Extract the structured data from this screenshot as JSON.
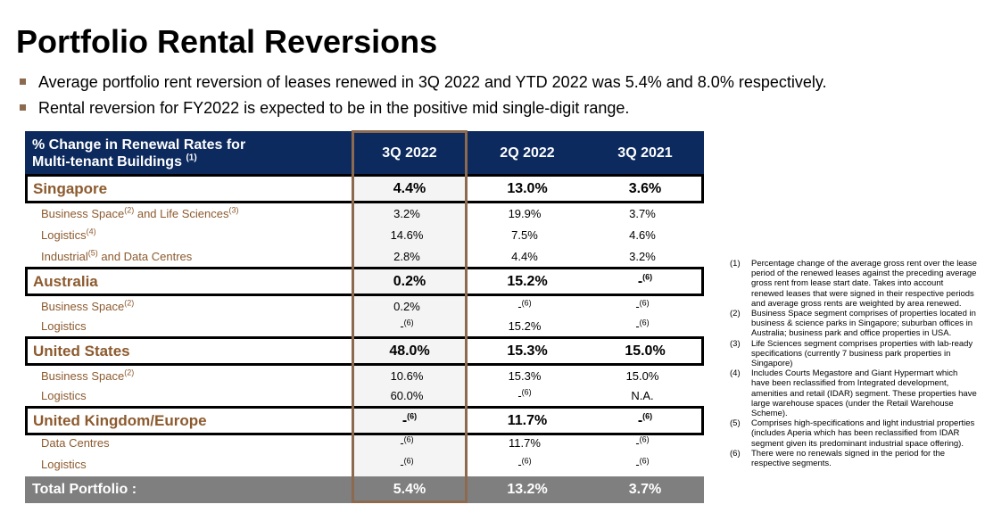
{
  "title": "Portfolio Rental Reversions",
  "bullets": [
    "Average portfolio rent reversion of leases renewed in 3Q 2022 and YTD 2022 was 5.4% and 8.0% respectively.",
    "Rental reversion for FY2022 is expected to be in the positive mid single-digit range."
  ],
  "table": {
    "header_label_line1": "% Change in Renewal Rates for",
    "header_label_line2": "Multi-tenant Buildings",
    "header_label_note": "(1)",
    "columns": [
      "3Q 2022",
      "2Q 2022",
      "3Q 2021"
    ],
    "rows": {
      "singapore": {
        "name": "Singapore",
        "v": [
          "4.4%",
          "13.0%",
          "3.6%"
        ]
      },
      "sg_business_space": {
        "name_a": "Business Space",
        "note_a": "(2)",
        "name_b": " and Life Sciences",
        "note_b": "(3)",
        "v": [
          "3.2%",
          "19.9%",
          "3.7%"
        ]
      },
      "sg_logistics": {
        "name": "Logistics",
        "note": "(4)",
        "v": [
          "14.6%",
          "7.5%",
          "4.6%"
        ]
      },
      "sg_industrial": {
        "name_a": "Industrial",
        "note_a": "(5)",
        "name_b": " and Data Centres",
        "v": [
          "2.8%",
          "4.4%",
          "3.2%"
        ]
      },
      "australia": {
        "name": "Australia",
        "v": [
          "0.2%",
          "15.2%",
          "-"
        ],
        "notes": [
          "",
          "",
          "(6)"
        ]
      },
      "au_business_space": {
        "name": "Business Space",
        "note": "(2)",
        "v": [
          "0.2%",
          "-",
          "-"
        ],
        "notes": [
          "",
          "(6)",
          "(6)"
        ]
      },
      "au_logistics": {
        "name": "Logistics",
        "v": [
          "-",
          "15.2%",
          "-"
        ],
        "notes": [
          "(6)",
          "",
          "(6)"
        ]
      },
      "united_states": {
        "name": "United States",
        "v": [
          "48.0%",
          "15.3%",
          "15.0%"
        ]
      },
      "us_business_space": {
        "name": "Business Space",
        "note": "(2)",
        "v": [
          "10.6%",
          "15.3%",
          "15.0%"
        ]
      },
      "us_logistics": {
        "name": "Logistics",
        "v": [
          "60.0%",
          "-",
          "N.A."
        ],
        "notes": [
          "",
          "(6)",
          ""
        ]
      },
      "uk_europe": {
        "name": "United Kingdom/Europe",
        "v": [
          "-",
          "11.7%",
          "-"
        ],
        "notes": [
          "(6)",
          "",
          "(6)"
        ]
      },
      "uk_data_centres": {
        "name": "Data Centres",
        "v": [
          "-",
          "11.7%",
          "-"
        ],
        "notes": [
          "(6)",
          "",
          "(6)"
        ]
      },
      "uk_logistics": {
        "name": "Logistics",
        "v": [
          "-",
          "-",
          "-"
        ],
        "notes": [
          "(6)",
          "(6)",
          "(6)"
        ]
      }
    },
    "total": {
      "name": "Total Portfolio :",
      "v": [
        "5.4%",
        "13.2%",
        "3.7%"
      ]
    }
  },
  "footnotes": [
    {
      "num": "(1)",
      "text": "Percentage change of the average gross rent over the lease period of the renewed leases against the preceding average gross rent from lease start date. Takes into account renewed leases that were signed in their respective periods and average gross rents are weighted by area renewed."
    },
    {
      "num": "(2)",
      "text": "Business Space segment comprises of properties located in business & science parks in Singapore; suburban offices in Australia; business park and office properties in USA."
    },
    {
      "num": "(3)",
      "text": "Life Sciences segment comprises properties with lab-ready specifications (currently 7 business park properties in Singapore)"
    },
    {
      "num": "(4)",
      "text": "Includes Courts Megastore and Giant Hypermart which have been reclassified from Integrated development, amenities and retail (IDAR) segment. These properties have large warehouse spaces (under the Retail Warehouse Scheme)."
    },
    {
      "num": "(5)",
      "text": "Comprises high-specifications and light industrial properties (includes Aperia which has been reclassified from IDAR segment given its predominant industrial space offering)."
    },
    {
      "num": "(6)",
      "text": "There were no renewals signed in the period for the respective segments."
    }
  ],
  "colors": {
    "header_bg": "#0d2a5e",
    "row_label": "#8c5a2e",
    "highlight_border": "#8c6a4f",
    "total_bg": "#7f7f7f"
  }
}
